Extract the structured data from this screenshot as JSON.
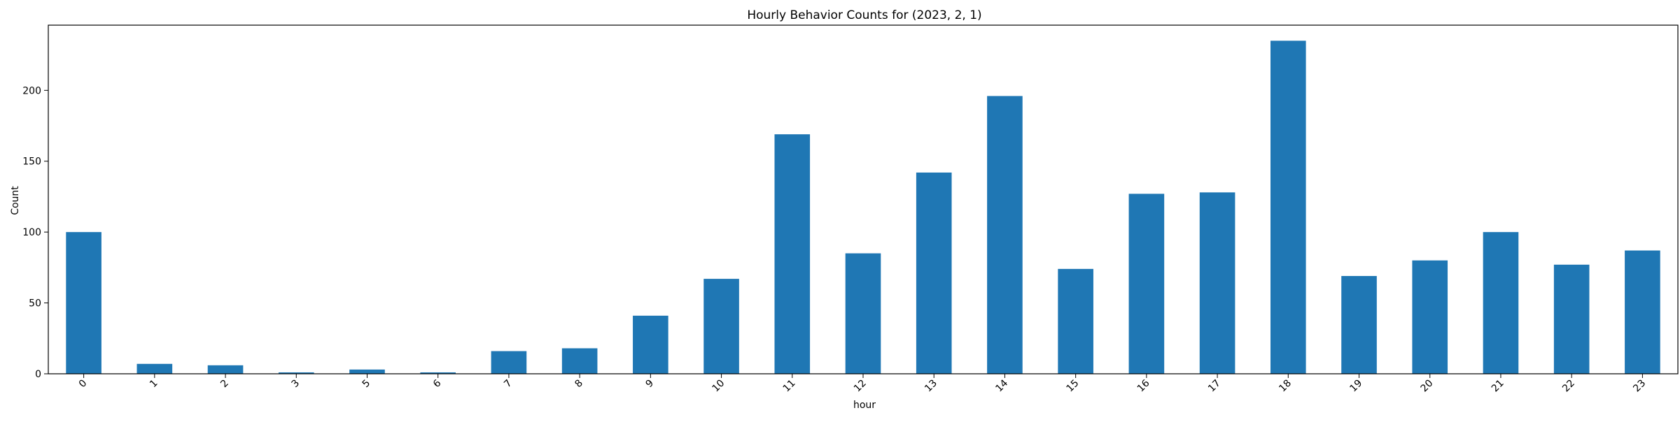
{
  "chart_data": {
    "type": "bar",
    "title": "Hourly Behavior Counts for (2023, 2, 1)",
    "xlabel": "hour",
    "ylabel": "Count",
    "categories": [
      "0",
      "1",
      "2",
      "3",
      "5",
      "6",
      "7",
      "8",
      "9",
      "10",
      "11",
      "12",
      "13",
      "14",
      "15",
      "16",
      "17",
      "18",
      "19",
      "20",
      "21",
      "22",
      "23"
    ],
    "values": [
      100,
      7,
      6,
      1,
      3,
      1,
      16,
      18,
      41,
      67,
      169,
      85,
      142,
      196,
      74,
      127,
      128,
      235,
      69,
      80,
      100,
      77,
      87
    ],
    "ylim": [
      0,
      246
    ],
    "yticks": [
      0,
      50,
      100,
      150,
      200
    ],
    "grid": false,
    "legend": "none",
    "bar_color": "#1f77b4"
  }
}
